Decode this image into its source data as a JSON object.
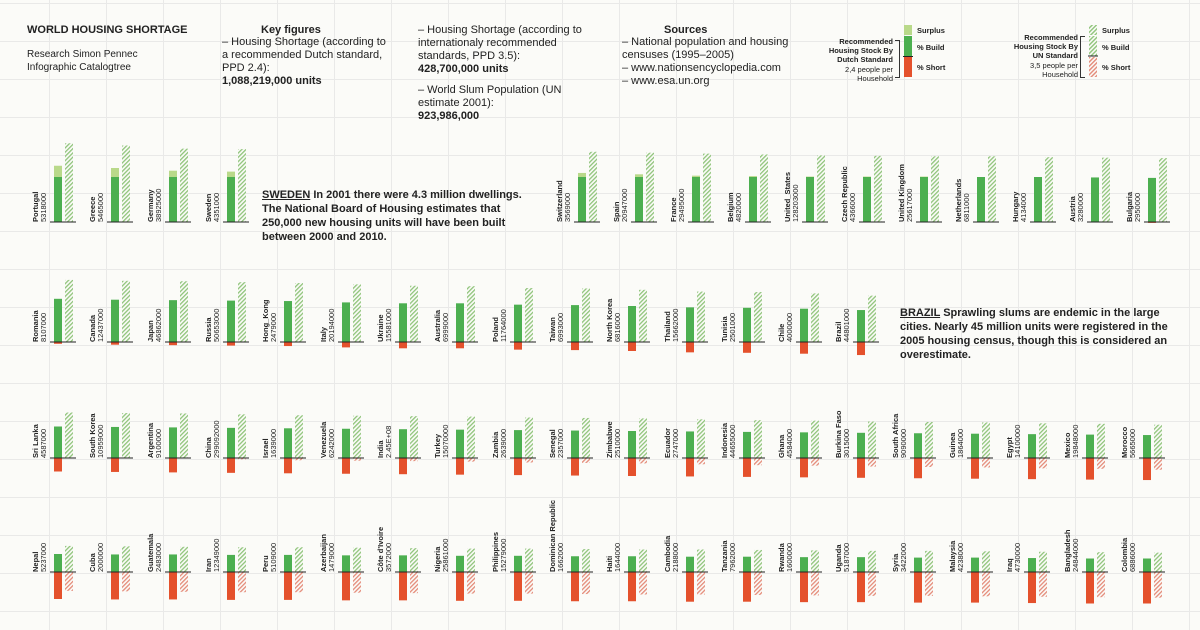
{
  "header": {
    "title": "WORLD HOUSING SHORTAGE",
    "credit_lines": [
      "Research Simon Pennec",
      "Infographic Catalogtree"
    ],
    "key_figures_title": "Key figures",
    "kf_dutch_text": "– Housing Shortage (according to a recommended Dutch standard, PPD 2.4):",
    "kf_dutch_value": "1,088,219,000 units",
    "kf_intl_text": "– Housing Shortage (according to internationaly recommended standards, PPD 3.5):",
    "kf_intl_value": "428,700,000 units",
    "kf_slum_text": "– World Slum Population (UN estimate 2001):",
    "kf_slum_value": "923,986,000",
    "sources_title": "Sources",
    "sources": [
      "– National population and housing censuses (1995–2005)",
      "– www.nationsencyclopedia.com",
      "– www.esa.un.org"
    ]
  },
  "legend": {
    "dutch_title": "Recommended Housing Stock By Dutch Standard",
    "dutch_note": "2,4 people per Household",
    "un_title": "Recommended Housing Stock By UN Standard",
    "un_note": "3,5 people per Household",
    "surplus": "Surplus",
    "build": "% Build",
    "short": "% Short",
    "colors": {
      "build": "#4caf50",
      "short": "#e4512c",
      "surplus": "#b9d98a",
      "hatch_green": "#8fc47a",
      "hatch_red": "#e48a78"
    }
  },
  "annotations": {
    "sweden_key": "SWEDEN",
    "sweden_text": "In 2001 there were 4.3 million dwellings. The National Board of Housing estimates that 250,000 new housing units will have been built between 2000 and 2010.",
    "brazil_key": "BRAZIL",
    "brazil_text": "Sprawling slums are endemic in the large cities. Nearly 45 million units were registered in the 2005 housing census, though this is considered an overestimate."
  },
  "chart_data": {
    "type": "bar",
    "value_unit": "percent of recommended housing stock",
    "series": [
      {
        "name": "% Build"
      },
      {
        "name": "% Short"
      },
      {
        "name": "Surplus"
      }
    ],
    "countries": [
      {
        "name": "Portugal",
        "units": "5318000",
        "dutch_pct": 125,
        "un_pct": 175
      },
      {
        "name": "Greece",
        "units": "5465000",
        "dutch_pct": 120,
        "un_pct": 170
      },
      {
        "name": "Germany",
        "units": "38925000",
        "dutch_pct": 114,
        "un_pct": 163
      },
      {
        "name": "Sweden",
        "units": "4351000",
        "dutch_pct": 112,
        "un_pct": 162
      },
      {
        "name": "Switzerland",
        "units": "3569000",
        "dutch_pct": 109,
        "un_pct": 156
      },
      {
        "name": "Spain",
        "units": "20947000",
        "dutch_pct": 106,
        "un_pct": 154
      },
      {
        "name": "France",
        "units": "29495000",
        "dutch_pct": 103,
        "un_pct": 152
      },
      {
        "name": "Belgium",
        "units": "4820000",
        "dutch_pct": 102,
        "un_pct": 150
      },
      {
        "name": "United_States",
        "units": "128203000",
        "dutch_pct": 101,
        "un_pct": 148
      },
      {
        "name": "Czech Republic",
        "units": "4366000",
        "dutch_pct": 101,
        "un_pct": 147
      },
      {
        "name": "United Kingdom",
        "units": "25617000",
        "dutch_pct": 101,
        "un_pct": 146
      },
      {
        "name": "Netherlands",
        "units": "6811000",
        "dutch_pct": 100,
        "un_pct": 146
      },
      {
        "name": "Hungary",
        "units": "4134000",
        "dutch_pct": 100,
        "un_pct": 144
      },
      {
        "name": "Austria",
        "units": "3280000",
        "dutch_pct": 99,
        "un_pct": 143
      },
      {
        "name": "Bulgaria",
        "units": "2950000",
        "dutch_pct": 98,
        "un_pct": 142
      },
      {
        "name": "Romania",
        "units": "8107000",
        "dutch_pct": 96,
        "un_pct": 138
      },
      {
        "name": "Canada",
        "units": "12437000",
        "dutch_pct": 94,
        "un_pct": 136
      },
      {
        "name": "Japan",
        "units": "46862000",
        "dutch_pct": 93,
        "un_pct": 135
      },
      {
        "name": "Russia",
        "units": "50653000",
        "dutch_pct": 92,
        "un_pct": 133
      },
      {
        "name": "Hong_Kong",
        "units": "2479000",
        "dutch_pct": 91,
        "un_pct": 131
      },
      {
        "name": "Italy",
        "units": "20194000",
        "dutch_pct": 88,
        "un_pct": 128
      },
      {
        "name": "Ukraine",
        "units": "15581000",
        "dutch_pct": 86,
        "un_pct": 125
      },
      {
        "name": "Australia",
        "units": "6999000",
        "dutch_pct": 86,
        "un_pct": 124
      },
      {
        "name": "Poland",
        "units": "11764000",
        "dutch_pct": 83,
        "un_pct": 120
      },
      {
        "name": "Taiwan",
        "units": "6993000",
        "dutch_pct": 82,
        "un_pct": 119
      },
      {
        "name": "North Korea",
        "units": "6816000",
        "dutch_pct": 80,
        "un_pct": 116
      },
      {
        "name": "Thailand",
        "units": "15662000",
        "dutch_pct": 77,
        "un_pct": 112
      },
      {
        "name": "Tunisia",
        "units": "2501000",
        "dutch_pct": 76,
        "un_pct": 111
      },
      {
        "name": "Chile",
        "units": "4000000",
        "dutch_pct": 74,
        "un_pct": 108
      },
      {
        "name": "Brazil",
        "units": "44801000",
        "dutch_pct": 71,
        "un_pct": 103
      },
      {
        "name": "Sri Lanka",
        "units": "4587000",
        "dutch_pct": 70,
        "un_pct": 101
      },
      {
        "name": "South Korea",
        "units": "10959000",
        "dutch_pct": 69,
        "un_pct": 100
      },
      {
        "name": "Argentina",
        "units": "9100000",
        "dutch_pct": 68,
        "un_pct": 99
      },
      {
        "name": "China",
        "units": "299092000",
        "dutch_pct": 67,
        "un_pct": 97
      },
      {
        "name": "Israel",
        "units": "1639000",
        "dutch_pct": 66,
        "un_pct": 95
      },
      {
        "name": "Venezuela",
        "units": "6242000",
        "dutch_pct": 65,
        "un_pct": 94
      },
      {
        "name": "India",
        "units": "2.45E+08",
        "dutch_pct": 64,
        "un_pct": 93
      },
      {
        "name": "Turkey",
        "units": "15070000",
        "dutch_pct": 63,
        "un_pct": 92
      },
      {
        "name": "Zambia",
        "units": "2639000",
        "dutch_pct": 62,
        "un_pct": 90
      },
      {
        "name": "Senegal",
        "units": "2357000",
        "dutch_pct": 61,
        "un_pct": 89
      },
      {
        "name": "Zimbabwe",
        "units": "2510000",
        "dutch_pct": 60,
        "un_pct": 88
      },
      {
        "name": "Ecuador",
        "units": "2747000",
        "dutch_pct": 59,
        "un_pct": 86
      },
      {
        "name": "Indonesia",
        "units": "44655000",
        "dutch_pct": 58,
        "un_pct": 84
      },
      {
        "name": "Ghana",
        "units": "4584000",
        "dutch_pct": 57,
        "un_pct": 83
      },
      {
        "name": "Burkina Faso",
        "units": "3015000",
        "dutch_pct": 56,
        "un_pct": 81
      },
      {
        "name": "South Africa",
        "units": "9090000",
        "dutch_pct": 55,
        "un_pct": 80
      },
      {
        "name": "Guinea",
        "units": "1864000",
        "dutch_pct": 54,
        "un_pct": 79
      },
      {
        "name": "Egypt",
        "units": "14100000",
        "dutch_pct": 53,
        "un_pct": 77
      },
      {
        "name": "Mexico",
        "units": "19848000",
        "dutch_pct": 52,
        "un_pct": 76
      },
      {
        "name": "Morocco",
        "units": "5665000",
        "dutch_pct": 51,
        "un_pct": 74
      },
      {
        "name": "Nepal",
        "units": "5237000",
        "dutch_pct": 40,
        "un_pct": 58
      },
      {
        "name": "Cuba",
        "units": "2000000",
        "dutch_pct": 39,
        "un_pct": 57
      },
      {
        "name": "Guatemala",
        "units": "2483000",
        "dutch_pct": 39,
        "un_pct": 56
      },
      {
        "name": "Iran",
        "units": "12349000",
        "dutch_pct": 38,
        "un_pct": 55
      },
      {
        "name": "Peru",
        "units": "5109000",
        "dutch_pct": 38,
        "un_pct": 55
      },
      {
        "name": "Azerbaijan",
        "units": "1479000",
        "dutch_pct": 37,
        "un_pct": 54
      },
      {
        "name": "Côte d'Ivoire",
        "units": "3572000",
        "dutch_pct": 37,
        "un_pct": 53
      },
      {
        "name": "Nigeria",
        "units": "25861000",
        "dutch_pct": 36,
        "un_pct": 52
      },
      {
        "name": "Philippines",
        "units": "15279000",
        "dutch_pct": 36,
        "un_pct": 52
      },
      {
        "name": "Dominican Republic",
        "units": "1662000",
        "dutch_pct": 35,
        "un_pct": 51
      },
      {
        "name": "Haiti",
        "units": "1644000",
        "dutch_pct": 35,
        "un_pct": 50
      },
      {
        "name": "Cambodia",
        "units": "2188000",
        "dutch_pct": 34,
        "un_pct": 50
      },
      {
        "name": "Tanzania",
        "units": "7962000",
        "dutch_pct": 34,
        "un_pct": 49
      },
      {
        "name": "Rwanda",
        "units": "1600000",
        "dutch_pct": 33,
        "un_pct": 48
      },
      {
        "name": "Uganda",
        "units": "5187000",
        "dutch_pct": 33,
        "un_pct": 47
      },
      {
        "name": "Syria",
        "units": "3422000",
        "dutch_pct": 32,
        "un_pct": 47
      },
      {
        "name": "Malaysia",
        "units": "4238000",
        "dutch_pct": 32,
        "un_pct": 46
      },
      {
        "name": "Iraq",
        "units": "4730000",
        "dutch_pct": 31,
        "un_pct": 45
      },
      {
        "name": "Bangladesh",
        "units": "24844000",
        "dutch_pct": 30,
        "un_pct": 44
      },
      {
        "name": "Colombia",
        "units": "6886000",
        "dutch_pct": 30,
        "un_pct": 43
      }
    ]
  }
}
